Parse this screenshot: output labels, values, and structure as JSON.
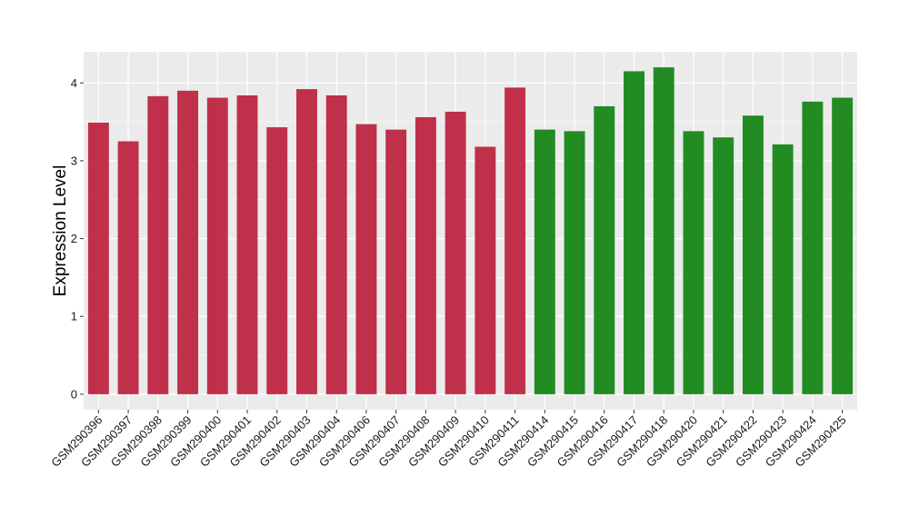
{
  "chart_data": {
    "type": "bar",
    "title": "",
    "xlabel": "",
    "ylabel": "Expression Level",
    "ylim": [
      -0.2,
      4.4
    ],
    "yticks": [
      0,
      1,
      2,
      3,
      4
    ],
    "grid": true,
    "legend": "none",
    "categories": [
      "GSM290396",
      "GSM290397",
      "GSM290398",
      "GSM290399",
      "GSM290400",
      "GSM290401",
      "GSM290402",
      "GSM290403",
      "GSM290404",
      "GSM290406",
      "GSM290407",
      "GSM290408",
      "GSM290409",
      "GSM290410",
      "GSM290411",
      "GSM290414",
      "GSM290415",
      "GSM290416",
      "GSM290417",
      "GSM290418",
      "GSM290420",
      "GSM290421",
      "GSM290422",
      "GSM290423",
      "GSM290424",
      "GSM290425"
    ],
    "values": [
      3.49,
      3.25,
      3.83,
      3.9,
      3.81,
      3.84,
      3.43,
      3.92,
      3.84,
      3.47,
      3.4,
      3.56,
      3.63,
      3.18,
      3.94,
      3.4,
      3.38,
      3.7,
      4.15,
      4.2,
      3.38,
      3.3,
      3.58,
      3.21,
      3.76,
      3.81
    ],
    "colors": [
      "#C0304A",
      "#C0304A",
      "#C0304A",
      "#C0304A",
      "#C0304A",
      "#C0304A",
      "#C0304A",
      "#C0304A",
      "#C0304A",
      "#C0304A",
      "#C0304A",
      "#C0304A",
      "#C0304A",
      "#C0304A",
      "#C0304A",
      "#228B22",
      "#228B22",
      "#228B22",
      "#228B22",
      "#228B22",
      "#228B22",
      "#228B22",
      "#228B22",
      "#228B22",
      "#228B22",
      "#228B22"
    ],
    "panel_background": "#EBEBEB",
    "grid_color": "#FFFFFF"
  }
}
